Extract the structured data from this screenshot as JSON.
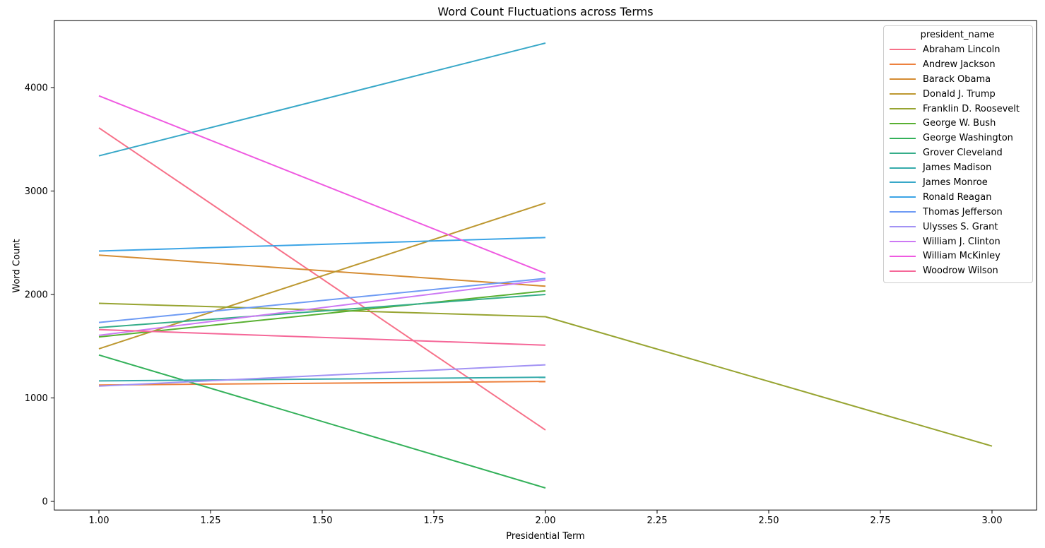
{
  "figure": {
    "background": "#ffffff"
  },
  "chart_data": {
    "type": "line",
    "title": "Word Count Fluctuations across Terms",
    "xlabel": "Presidential Term",
    "ylabel": "Word Count",
    "xlim": [
      0.9,
      3.1
    ],
    "ylim": [
      -83,
      4647
    ],
    "x_ticks": [
      1.0,
      1.25,
      1.5,
      1.75,
      2.0,
      2.25,
      2.5,
      2.75,
      3.0
    ],
    "x_tick_labels": [
      "1.00",
      "1.25",
      "1.50",
      "1.75",
      "2.00",
      "2.25",
      "2.50",
      "2.75",
      "3.00"
    ],
    "y_ticks": [
      0,
      1000,
      2000,
      3000,
      4000
    ],
    "y_tick_labels": [
      "0",
      "1000",
      "2000",
      "3000",
      "4000"
    ],
    "grid": false,
    "legend": {
      "title": "president_name",
      "position": "upper right"
    },
    "series": [
      {
        "name": "Abraham Lincoln",
        "color": "#f77189",
        "x": [
          1,
          2
        ],
        "values": [
          3610,
          690
        ]
      },
      {
        "name": "Andrew Jackson",
        "color": "#ed813e",
        "x": [
          1,
          2
        ],
        "values": [
          1125,
          1160
        ]
      },
      {
        "name": "Barack Obama",
        "color": "#d58c32",
        "x": [
          1,
          2
        ],
        "values": [
          2380,
          2080
        ]
      },
      {
        "name": "Donald J. Trump",
        "color": "#bd9831",
        "x": [
          1,
          2
        ],
        "values": [
          1475,
          2885
        ]
      },
      {
        "name": "Franklin D. Roosevelt",
        "color": "#97a431",
        "x": [
          1,
          2,
          3
        ],
        "values": [
          1915,
          1785,
          535
        ]
      },
      {
        "name": "George W. Bush",
        "color": "#59b032",
        "x": [
          1,
          2
        ],
        "values": [
          1590,
          2035
        ]
      },
      {
        "name": "George Washington",
        "color": "#34b15a",
        "x": [
          1,
          2
        ],
        "values": [
          1415,
          130
        ]
      },
      {
        "name": "Grover Cleveland",
        "color": "#35ad89",
        "x": [
          1,
          2
        ],
        "values": [
          1680,
          2000
        ]
      },
      {
        "name": "James Madison",
        "color": "#36abab",
        "x": [
          1,
          2
        ],
        "values": [
          1165,
          1200
        ]
      },
      {
        "name": "James Monroe",
        "color": "#38a8c8",
        "x": [
          1,
          2
        ],
        "values": [
          3340,
          4430
        ]
      },
      {
        "name": "Ronald Reagan",
        "color": "#3ba4e6",
        "x": [
          1,
          2
        ],
        "values": [
          2420,
          2550
        ]
      },
      {
        "name": "Thomas Jefferson",
        "color": "#6e9bf4",
        "x": [
          1,
          2
        ],
        "values": [
          1730,
          2155
        ]
      },
      {
        "name": "Ulysses S. Grant",
        "color": "#a292f4",
        "x": [
          1,
          2
        ],
        "values": [
          1115,
          1320
        ]
      },
      {
        "name": "William J. Clinton",
        "color": "#cc79f4",
        "x": [
          1,
          2
        ],
        "values": [
          1605,
          2140
        ]
      },
      {
        "name": "William McKinley",
        "color": "#ef5ae1",
        "x": [
          1,
          2
        ],
        "values": [
          3920,
          2205
        ]
      },
      {
        "name": "Woodrow Wilson",
        "color": "#f56798",
        "x": [
          1,
          2
        ],
        "values": [
          1660,
          1510
        ]
      }
    ]
  }
}
